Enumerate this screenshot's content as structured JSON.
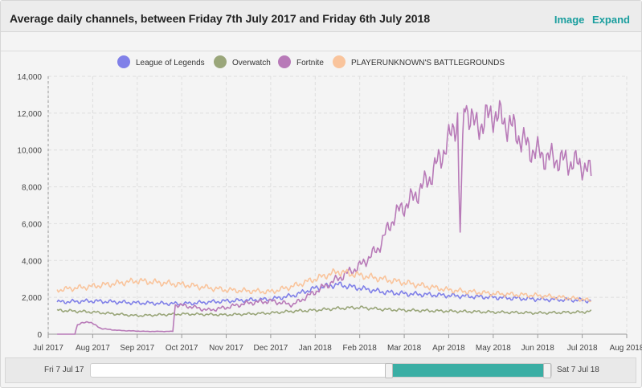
{
  "header": {
    "title": "Average daily channels, between Friday 7th July 2017 and Friday 6th July 2018",
    "image_label": "Image",
    "expand_label": "Expand"
  },
  "navigator": {
    "start_label": "Fri 7 Jul 17",
    "end_label": "Sat 7 Jul 18",
    "range_start_fraction": 0.65,
    "range_end_fraction": 1.0
  },
  "chart_data": {
    "type": "line",
    "title": "Average daily channels, between Friday 7th July 2017 and Friday 6th July 2018",
    "xlabel": "",
    "ylabel": "",
    "ylim": [
      0,
      14000
    ],
    "yticks": [
      "0",
      "2,000",
      "4,000",
      "6,000",
      "8,000",
      "10,000",
      "12,000",
      "14,000"
    ],
    "xticks": [
      "Jul 2017",
      "Aug 2017",
      "Sep 2017",
      "Oct 2017",
      "Nov 2017",
      "Dec 2017",
      "Jan 2018",
      "Feb 2018",
      "Mar 2018",
      "Apr 2018",
      "May 2018",
      "Jun 2018",
      "Jul 2018",
      "Aug 2018"
    ],
    "x_range_months": [
      0,
      13
    ],
    "legend_position": "top-center",
    "grid": true,
    "series": [
      {
        "name": "League of Legends",
        "color": "#8080e8",
        "x": [
          0.2,
          1,
          2,
          3,
          4,
          5,
          5.5,
          6,
          6.5,
          7,
          7.5,
          8,
          9,
          10,
          11,
          12,
          12.2
        ],
        "values": [
          1750,
          1800,
          1700,
          1650,
          1800,
          1900,
          2100,
          2500,
          2700,
          2500,
          2300,
          2200,
          2100,
          2000,
          1900,
          1850,
          1800
        ]
      },
      {
        "name": "Overwatch",
        "color": "#9aa67a",
        "x": [
          0.2,
          1,
          2,
          3,
          4,
          5,
          5.5,
          6,
          6.5,
          7,
          7.5,
          8,
          9,
          10,
          11,
          12,
          12.2
        ],
        "values": [
          1300,
          1200,
          1000,
          1100,
          1050,
          1150,
          1250,
          1300,
          1400,
          1450,
          1350,
          1300,
          1250,
          1200,
          1150,
          1200,
          1250
        ]
      },
      {
        "name": "Fortnite",
        "color": "#b87ab8",
        "x": [
          0.2,
          0.6,
          0.65,
          0.9,
          1.2,
          1.6,
          2.2,
          2.8,
          2.85,
          3.2,
          3.6,
          4,
          4.5,
          5,
          5.5,
          6,
          6.5,
          7,
          7.4,
          7.8,
          8.2,
          8.6,
          9,
          9.2,
          9.25,
          9.35,
          9.6,
          10,
          10.4,
          10.8,
          11.2,
          11.6,
          12,
          12.2
        ],
        "values": [
          0,
          0,
          500,
          700,
          300,
          200,
          150,
          150,
          1600,
          1500,
          1300,
          1450,
          1700,
          1800,
          1600,
          2300,
          3000,
          3700,
          4600,
          6500,
          7400,
          8600,
          10500,
          11800,
          5100,
          12700,
          11200,
          12000,
          11300,
          10100,
          9600,
          9400,
          9200,
          8700
        ]
      },
      {
        "name": "PLAYERUNKNOWN'S BATTLEGROUNDS",
        "color": "#f9c49c",
        "x": [
          0.2,
          1,
          2,
          3,
          4,
          5,
          5.5,
          6,
          6.5,
          7,
          7.5,
          8,
          9,
          10,
          11,
          12,
          12.2
        ],
        "values": [
          2400,
          2600,
          2900,
          2700,
          2400,
          2300,
          2600,
          3000,
          3400,
          3200,
          3000,
          2800,
          2400,
          2200,
          2100,
          1900,
          1800
        ]
      }
    ]
  }
}
